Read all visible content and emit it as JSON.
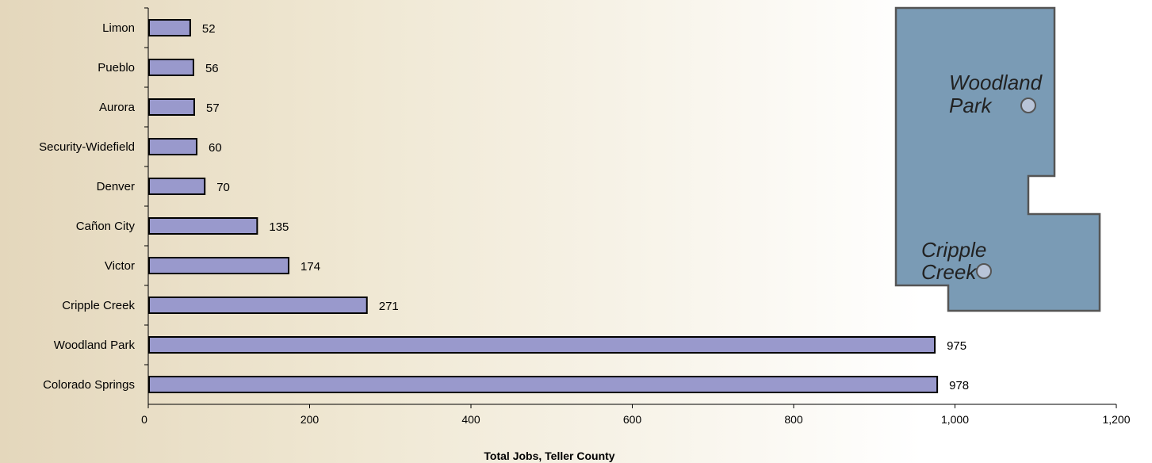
{
  "chart_data": {
    "type": "bar",
    "orientation": "horizontal",
    "categories": [
      "Colorado Springs",
      "Woodland Park",
      "Cripple Creek",
      "Victor",
      "Cañon City",
      "Denver",
      "Security-Widefield",
      "Aurora",
      "Pueblo",
      "Limon"
    ],
    "values": [
      978,
      975,
      271,
      174,
      135,
      70,
      60,
      57,
      56,
      52
    ],
    "data_labels": [
      "978",
      "975",
      "271",
      "174",
      "135",
      "70",
      "60",
      "57",
      "56",
      "52"
    ],
    "xlabel": "Total Jobs, Teller County",
    "ylabel": "",
    "xlim": [
      0,
      1200
    ],
    "x_ticks": [
      0,
      200,
      400,
      600,
      800,
      1000,
      1200
    ],
    "x_tick_labels": [
      "0",
      "200",
      "400",
      "600",
      "800",
      "1,000",
      "1,200"
    ],
    "grid": false,
    "legend": "none",
    "bar_color": "#9999cc",
    "bar_edge_color": "#000000"
  },
  "map_inset": {
    "labels": [
      {
        "lines": [
          "Woodland",
          "Park"
        ]
      },
      {
        "lines": [
          "Cripple",
          "Creek"
        ]
      }
    ],
    "fill_color": "#7a9bb5",
    "edge_color": "#555555",
    "marker_color": "#b8c4d8"
  }
}
